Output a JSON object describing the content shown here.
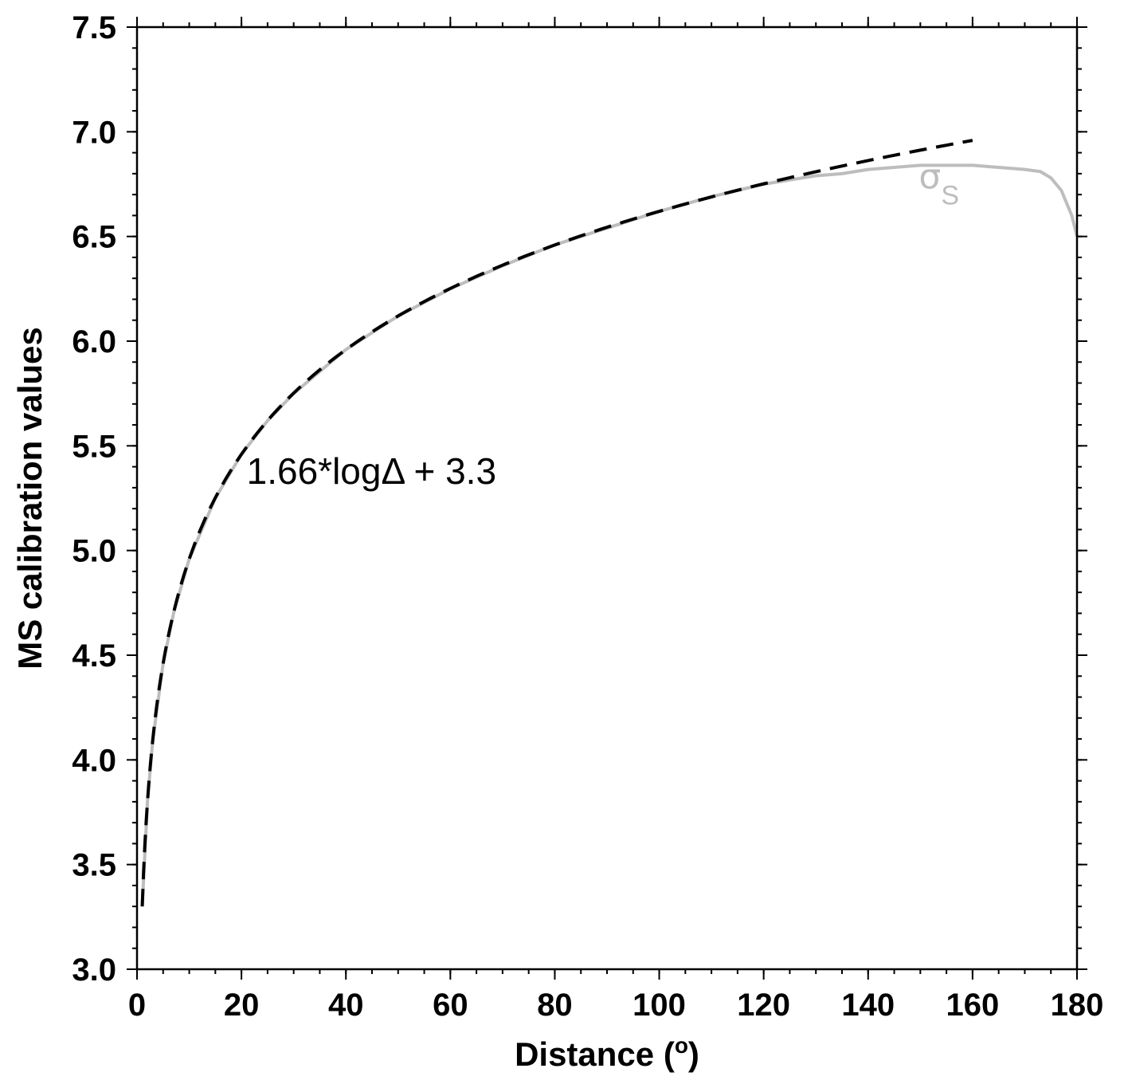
{
  "chart_data": {
    "type": "line",
    "xlabel": "Distance (°)",
    "xlabel_parts": {
      "main": "Distance (",
      "degree": "o",
      "close": ")"
    },
    "ylabel": "MS calibration values",
    "xlim": [
      0,
      180
    ],
    "ylim": [
      3.0,
      7.5
    ],
    "xticks": [
      "0",
      "20",
      "40",
      "60",
      "80",
      "100",
      "120",
      "140",
      "160",
      "180"
    ],
    "yticks": [
      "3.0",
      "3.5",
      "4.0",
      "4.5",
      "5.0",
      "5.5",
      "6.0",
      "6.5",
      "7.0",
      "7.5"
    ],
    "x_minor_step": 5,
    "y_minor_step": 0.1,
    "grid": false,
    "series": [
      {
        "name": "σS",
        "style": "solid",
        "color": "#bdbdbd",
        "points": [
          [
            1,
            3.3
          ],
          [
            2,
            3.8
          ],
          [
            3,
            4.09
          ],
          [
            5,
            4.46
          ],
          [
            7,
            4.7
          ],
          [
            10,
            4.96
          ],
          [
            15,
            5.25
          ],
          [
            20,
            5.46
          ],
          [
            25,
            5.62
          ],
          [
            30,
            5.75
          ],
          [
            40,
            5.96
          ],
          [
            50,
            6.12
          ],
          [
            60,
            6.25
          ],
          [
            70,
            6.36
          ],
          [
            80,
            6.46
          ],
          [
            90,
            6.54
          ],
          [
            100,
            6.62
          ],
          [
            110,
            6.69
          ],
          [
            120,
            6.75
          ],
          [
            125,
            6.77
          ],
          [
            130,
            6.79
          ],
          [
            135,
            6.8
          ],
          [
            140,
            6.82
          ],
          [
            145,
            6.83
          ],
          [
            150,
            6.84
          ],
          [
            155,
            6.84
          ],
          [
            160,
            6.84
          ],
          [
            165,
            6.83
          ],
          [
            170,
            6.82
          ],
          [
            173,
            6.81
          ],
          [
            175,
            6.78
          ],
          [
            177,
            6.72
          ],
          [
            179,
            6.6
          ],
          [
            180,
            6.5
          ]
        ]
      },
      {
        "name": "1.66*logΔ + 3.3",
        "style": "dashed",
        "color": "#000000",
        "formula": {
          "a": 1.66,
          "b": 3.3,
          "x_start": 1,
          "x_end": 160
        }
      }
    ],
    "annotations": [
      {
        "text": "1.66*logΔ + 3.3",
        "x": 21,
        "y": 5.38
      },
      {
        "symbol": "σ",
        "subscript": "S",
        "x": 150,
        "y": 6.76,
        "color": "#bdbdbd"
      }
    ]
  }
}
